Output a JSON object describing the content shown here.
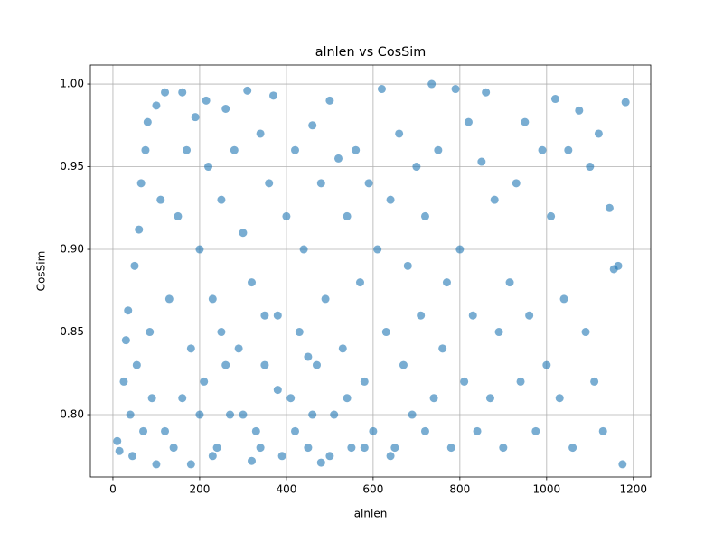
{
  "chart_data": {
    "type": "scatter",
    "title": "alnlen vs CosSim",
    "xlabel": "alnlen",
    "ylabel": "CosSim",
    "color": "#1f77b4",
    "grid": true,
    "xlim": [
      -52,
      1240
    ],
    "ylim": [
      0.7623,
      1.0115
    ],
    "xticks": [
      0,
      200,
      400,
      600,
      800,
      1000,
      1200
    ],
    "yticks": [
      {
        "value": 0.8,
        "label": "0.80"
      },
      0.85,
      {
        "value": 0.9,
        "label": "0.90"
      },
      0.95,
      {
        "value": 1.0,
        "label": "1.00"
      }
    ],
    "x": [
      10,
      15,
      25,
      30,
      35,
      40,
      45,
      50,
      55,
      60,
      65,
      70,
      75,
      80,
      85,
      90,
      100,
      110,
      120,
      130,
      140,
      150,
      160,
      170,
      180,
      190,
      200,
      210,
      215,
      220,
      230,
      240,
      250,
      260,
      270,
      280,
      290,
      300,
      310,
      320,
      330,
      340,
      350,
      360,
      370,
      380,
      390,
      400,
      410,
      420,
      430,
      440,
      450,
      460,
      470,
      480,
      490,
      500,
      510,
      520,
      530,
      540,
      550,
      560,
      570,
      580,
      590,
      600,
      610,
      620,
      630,
      640,
      650,
      660,
      670,
      680,
      690,
      700,
      710,
      720,
      735,
      740,
      750,
      760,
      770,
      780,
      790,
      800,
      810,
      820,
      830,
      840,
      850,
      860,
      870,
      880,
      890,
      900,
      915,
      930,
      940,
      950,
      960,
      975,
      990,
      1000,
      1010,
      1020,
      1030,
      1040,
      1050,
      1060,
      1075,
      1090,
      1100,
      1110,
      1120,
      1130,
      1145,
      1155,
      1165,
      1175,
      1182,
      120,
      160,
      200,
      230,
      260,
      300,
      340,
      380,
      420,
      460,
      500,
      540,
      580,
      250,
      350,
      450,
      180,
      320,
      480,
      640,
      720,
      100
    ],
    "y": [
      0.784,
      0.778,
      0.82,
      0.845,
      0.863,
      0.8,
      0.775,
      0.89,
      0.83,
      0.912,
      0.94,
      0.79,
      0.96,
      0.977,
      0.85,
      0.81,
      0.987,
      0.93,
      0.995,
      0.87,
      0.78,
      0.92,
      0.995,
      0.96,
      0.84,
      0.98,
      0.9,
      0.82,
      0.99,
      0.95,
      0.87,
      0.78,
      0.93,
      0.985,
      0.8,
      0.96,
      0.84,
      0.91,
      0.996,
      0.88,
      0.79,
      0.97,
      0.83,
      0.94,
      0.993,
      0.86,
      0.775,
      0.92,
      0.81,
      0.96,
      0.85,
      0.9,
      0.78,
      0.975,
      0.83,
      0.94,
      0.87,
      0.99,
      0.8,
      0.955,
      0.84,
      0.92,
      0.78,
      0.96,
      0.88,
      0.82,
      0.94,
      0.79,
      0.9,
      0.997,
      0.85,
      0.93,
      0.78,
      0.97,
      0.83,
      0.89,
      0.8,
      0.95,
      0.86,
      0.92,
      1.0,
      0.81,
      0.96,
      0.84,
      0.88,
      0.78,
      0.997,
      0.9,
      0.82,
      0.977,
      0.86,
      0.79,
      0.953,
      0.995,
      0.81,
      0.93,
      0.85,
      0.78,
      0.88,
      0.94,
      0.82,
      0.977,
      0.86,
      0.79,
      0.96,
      0.83,
      0.92,
      0.991,
      0.81,
      0.87,
      0.96,
      0.78,
      0.984,
      0.85,
      0.95,
      0.82,
      0.97,
      0.79,
      0.925,
      0.888,
      0.89,
      0.77,
      0.989,
      0.79,
      0.81,
      0.8,
      0.775,
      0.83,
      0.8,
      0.78,
      0.815,
      0.79,
      0.8,
      0.775,
      0.81,
      0.78,
      0.85,
      0.86,
      0.835,
      0.77,
      0.772,
      0.771,
      0.775,
      0.79,
      0.77
    ]
  }
}
